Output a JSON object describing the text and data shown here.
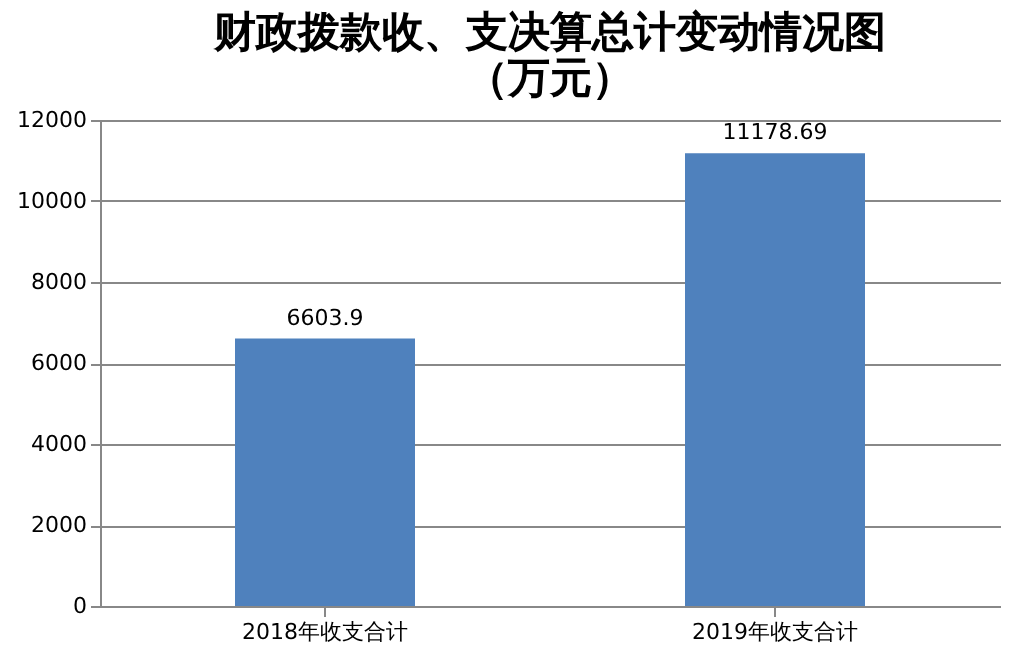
{
  "chart_data": {
    "type": "bar",
    "title": "财政拨款收、支决算总计变动情况图",
    "subtitle": "（万元）",
    "categories": [
      "2018年收支合计",
      "2019年收支合计"
    ],
    "values": [
      6603.9,
      11178.69
    ],
    "color": "#4f81bd",
    "ylim": [
      0,
      12000
    ],
    "yticks": [
      0,
      2000,
      4000,
      6000,
      8000,
      10000,
      12000
    ],
    "grid": "y",
    "data_labels": true
  }
}
